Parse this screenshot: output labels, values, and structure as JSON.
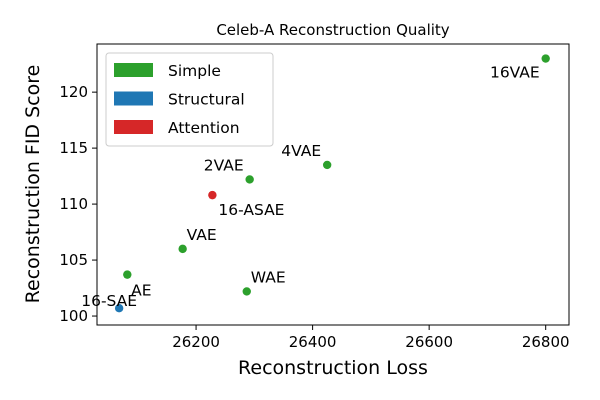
{
  "chart_data": {
    "type": "scatter",
    "title": "Celeb-A Reconstruction Quality",
    "xlabel": "Reconstruction Loss",
    "ylabel": "Reconstruction FID Score",
    "xlim": [
      26030,
      26840
    ],
    "ylim": [
      99.2,
      124.3
    ],
    "xticks": [
      26200,
      26400,
      26600,
      26800
    ],
    "yticks": [
      100,
      105,
      110,
      115,
      120
    ],
    "grid": false,
    "legend_position": "top-left",
    "categories": [
      {
        "name": "Simple",
        "color": "#2ca02c"
      },
      {
        "name": "Structural",
        "color": "#1f77b4"
      },
      {
        "name": "Attention",
        "color": "#d62728"
      }
    ],
    "points": [
      {
        "label": "16VAE",
        "x": 26800,
        "y": 123.0,
        "category": "Simple",
        "label_pos": "below-left"
      },
      {
        "label": "4VAE",
        "x": 26425,
        "y": 113.5,
        "category": "Simple",
        "label_pos": "above-left"
      },
      {
        "label": "2VAE",
        "x": 26292,
        "y": 112.2,
        "category": "Simple",
        "label_pos": "above-left"
      },
      {
        "label": "16-ASAE",
        "x": 26228,
        "y": 110.8,
        "category": "Attention",
        "label_pos": "below-right"
      },
      {
        "label": "VAE",
        "x": 26177,
        "y": 106.0,
        "category": "Simple",
        "label_pos": "above-right"
      },
      {
        "label": "AE",
        "x": 26082,
        "y": 103.7,
        "category": "Simple",
        "label_pos": "below"
      },
      {
        "label": "WAE",
        "x": 26287,
        "y": 102.2,
        "category": "Simple",
        "label_pos": "above-right"
      },
      {
        "label": "16-SAE",
        "x": 26068,
        "y": 100.7,
        "category": "Structural",
        "label_pos": "above"
      }
    ]
  }
}
